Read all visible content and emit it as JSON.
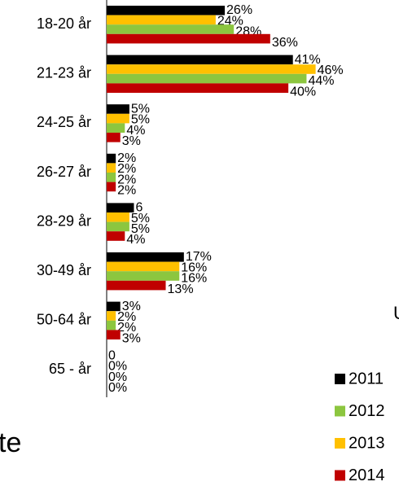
{
  "chart_data": {
    "type": "bar",
    "orientation": "horizontal",
    "categories": [
      "18-20 år",
      "21-23 år",
      "24-25 år",
      "26-27 år",
      "28-29 år",
      "30-49 år",
      "50-64 år",
      "65 - år"
    ],
    "series": [
      {
        "name": "2011",
        "color": "#000000",
        "values": [
          26,
          41,
          5,
          2,
          6,
          17,
          3,
          0
        ],
        "value_labels": [
          "26%",
          "41%",
          "5%",
          "2%",
          "6",
          "17%",
          "3%",
          "0"
        ]
      },
      {
        "name": "2012",
        "color": "#8cc63f",
        "values": [
          28,
          44,
          4,
          2,
          5,
          16,
          2,
          0
        ],
        "value_labels": [
          "28%",
          "44%",
          "4%",
          "2%",
          "5%",
          "16%",
          "2%",
          "0%"
        ]
      },
      {
        "name": "2013",
        "color": "#ffc000",
        "values": [
          24,
          46,
          5,
          2,
          5,
          16,
          2,
          0
        ],
        "value_labels": [
          "24%",
          "46%",
          "5%",
          "2%",
          "5%",
          "16%",
          "2%",
          "0%"
        ]
      },
      {
        "name": "2014",
        "color": "#c00000",
        "values": [
          36,
          40,
          3,
          2,
          4,
          13,
          3,
          0
        ],
        "value_labels": [
          "36%",
          "40%",
          "3%",
          "2%",
          "4%",
          "13%",
          "3%",
          "0%"
        ]
      }
    ],
    "xlim": [
      0,
      64
    ],
    "legend": "bottom-right",
    "fragments": [
      "te",
      "U"
    ]
  }
}
